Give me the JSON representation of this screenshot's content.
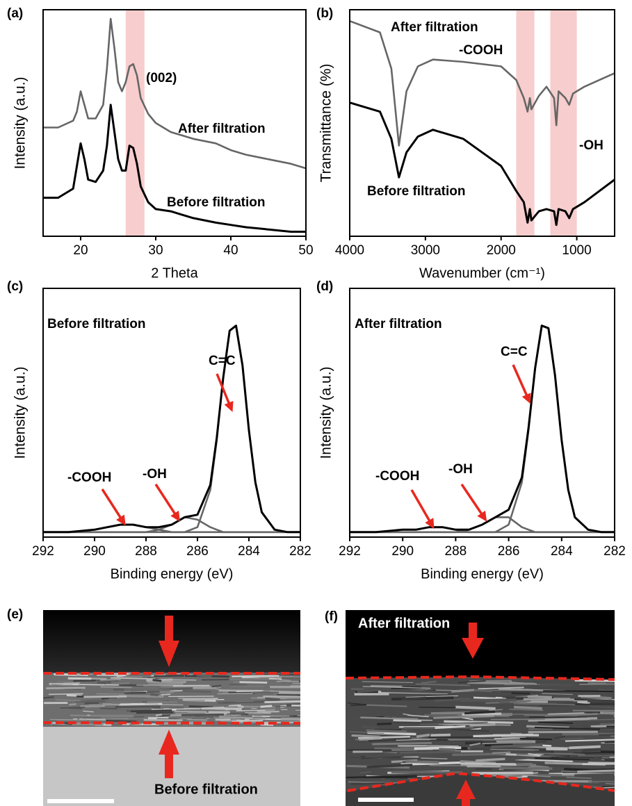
{
  "chart_data": [
    {
      "type": "line",
      "panel_label": "(a)",
      "x_label": "2 Theta",
      "y_label": "Intensity (a.u.)",
      "x": [
        15,
        17,
        19,
        19.5,
        20,
        20.5,
        21,
        22,
        23,
        23.5,
        24,
        24.5,
        25,
        25.5,
        26,
        26.5,
        27,
        27.5,
        28,
        29,
        30,
        32,
        35,
        38,
        40,
        42,
        45,
        48,
        50
      ],
      "series": [
        {
          "color": "#666666",
          "values": [
            48,
            48,
            51,
            55,
            64,
            58,
            52,
            52,
            58,
            74,
            96,
            83,
            68,
            64,
            68,
            75,
            76,
            71,
            61,
            54,
            50,
            46,
            43,
            41,
            38,
            36,
            34,
            32,
            30
          ]
        },
        {
          "color": "#000000",
          "values": [
            17,
            17,
            21,
            31,
            41,
            34,
            25,
            24,
            29,
            40,
            58,
            46,
            34,
            29,
            29,
            40,
            39,
            32,
            22,
            15,
            12,
            11,
            8,
            6,
            5,
            4,
            3,
            2,
            2
          ]
        }
      ],
      "xlim": [
        15,
        50
      ],
      "xticks": [
        20,
        30,
        40,
        50
      ],
      "ylim": [
        0,
        100
      ],
      "highlight_ranges": [
        [
          26,
          28.5
        ]
      ],
      "annotations": [
        "(002)",
        "After filtration",
        "Before filtration"
      ]
    },
    {
      "type": "line",
      "panel_label": "(b)",
      "x_label": "Wavenumber (cm⁻¹)",
      "y_label": "Transmittance (%)",
      "x": [
        4000,
        3600,
        3450,
        3350,
        3250,
        3100,
        2900,
        2500,
        2000,
        1800,
        1700,
        1650,
        1620,
        1600,
        1500,
        1400,
        1300,
        1270,
        1240,
        1150,
        1100,
        1050,
        900,
        700,
        500
      ],
      "series": [
        {
          "color": "#666666",
          "values": [
            95,
            90,
            74,
            40,
            64,
            75,
            78,
            77,
            75,
            69,
            61,
            55,
            61,
            56,
            62,
            66,
            61,
            49,
            64,
            61,
            58,
            63,
            66,
            69,
            72
          ]
        },
        {
          "color": "#000000",
          "values": [
            59,
            55,
            43,
            26,
            37,
            44,
            47,
            43,
            31,
            20,
            15,
            6,
            12,
            7,
            11,
            12,
            11,
            5,
            12,
            11,
            8,
            12,
            15,
            20,
            25
          ]
        }
      ],
      "xlim": [
        4000,
        500
      ],
      "xticks": [
        4000,
        3000,
        2000,
        1000
      ],
      "ylim": [
        0,
        100
      ],
      "highlight_ranges": [
        [
          1800,
          1560
        ],
        [
          1350,
          1000
        ]
      ],
      "annotations": [
        "After filtration",
        "-COOH",
        "-OH",
        "Before filtration"
      ]
    },
    {
      "type": "line",
      "panel_label": "(c)",
      "x_label": "Binding energy (eV)",
      "y_label": "Intensity (a.u.)",
      "x": [
        292,
        291,
        290,
        289.5,
        289,
        288.5,
        288,
        287.5,
        287,
        286.5,
        286,
        285.5,
        285.25,
        285,
        284.75,
        284.5,
        284.25,
        284,
        283.75,
        283.5,
        283,
        282.5,
        282
      ],
      "series": [
        {
          "color": "#666666",
          "values": [
            2,
            2,
            2,
            2,
            2,
            2,
            2,
            2,
            2,
            2,
            4,
            19,
            39,
            64,
            83,
            85,
            69,
            43,
            22,
            10,
            3,
            2,
            2
          ]
        },
        {
          "color": "#666666",
          "values": [
            2,
            2,
            2,
            2,
            2,
            2,
            2,
            3,
            5,
            8,
            7,
            4,
            3,
            2,
            2,
            2,
            2,
            2,
            2,
            2,
            2,
            2,
            2
          ]
        },
        {
          "color": "#666666",
          "values": [
            2,
            2,
            3,
            4,
            5,
            5,
            4,
            3,
            2,
            2,
            2,
            2,
            2,
            2,
            2,
            2,
            2,
            2,
            2,
            2,
            2,
            2,
            2
          ]
        },
        {
          "color": "#000000",
          "values": [
            2,
            2,
            3,
            4,
            5,
            5,
            4,
            4,
            5,
            8,
            9,
            21,
            40,
            64,
            83,
            85,
            69,
            43,
            22,
            10,
            3,
            2,
            2
          ]
        }
      ],
      "xlim": [
        292,
        282
      ],
      "xticks": [
        292,
        290,
        288,
        286,
        284,
        282
      ],
      "ylim": [
        0,
        100
      ],
      "annotations": [
        "Before filtration",
        "C=C",
        "-OH",
        "-COOH"
      ]
    },
    {
      "type": "line",
      "panel_label": "(d)",
      "x_label": "Binding energy (eV)",
      "y_label": "Intensity (a.u.)",
      "x": [
        292,
        291,
        290,
        289.5,
        289,
        288.5,
        288,
        287.5,
        287,
        286.5,
        286,
        285.5,
        285.25,
        285,
        284.75,
        284.5,
        284.25,
        284,
        283.75,
        283.5,
        283,
        282.5,
        282
      ],
      "series": [
        {
          "color": "#666666",
          "values": [
            2,
            2,
            2,
            2,
            2,
            2,
            2,
            2,
            2,
            2,
            5,
            22,
            43,
            68,
            85,
            84,
            65,
            39,
            19,
            8,
            3,
            2,
            2
          ]
        },
        {
          "color": "#666666",
          "values": [
            2,
            2,
            2,
            2,
            2,
            2,
            2,
            3,
            5,
            8,
            8,
            4,
            3,
            2,
            2,
            2,
            2,
            2,
            2,
            2,
            2,
            2,
            2
          ]
        },
        {
          "color": "#666666",
          "values": [
            2,
            2,
            3,
            3,
            4,
            4,
            3,
            2,
            2,
            2,
            2,
            2,
            2,
            2,
            2,
            2,
            2,
            2,
            2,
            2,
            2,
            2,
            2
          ]
        },
        {
          "color": "#000000",
          "values": [
            2,
            2,
            3,
            3,
            4,
            4,
            3,
            3,
            5,
            8,
            11,
            24,
            44,
            68,
            85,
            84,
            65,
            39,
            19,
            8,
            3,
            2,
            2
          ]
        }
      ],
      "xlim": [
        292,
        282
      ],
      "xticks": [
        292,
        290,
        288,
        286,
        284,
        282
      ],
      "ylim": [
        0,
        100
      ],
      "annotations": [
        "After filtration",
        "C=C",
        "-OH",
        "-COOH"
      ]
    }
  ],
  "images": [
    {
      "panel_label": "(e)",
      "caption": "Before filtration"
    },
    {
      "panel_label": "(f)",
      "caption": "After filtration"
    }
  ]
}
